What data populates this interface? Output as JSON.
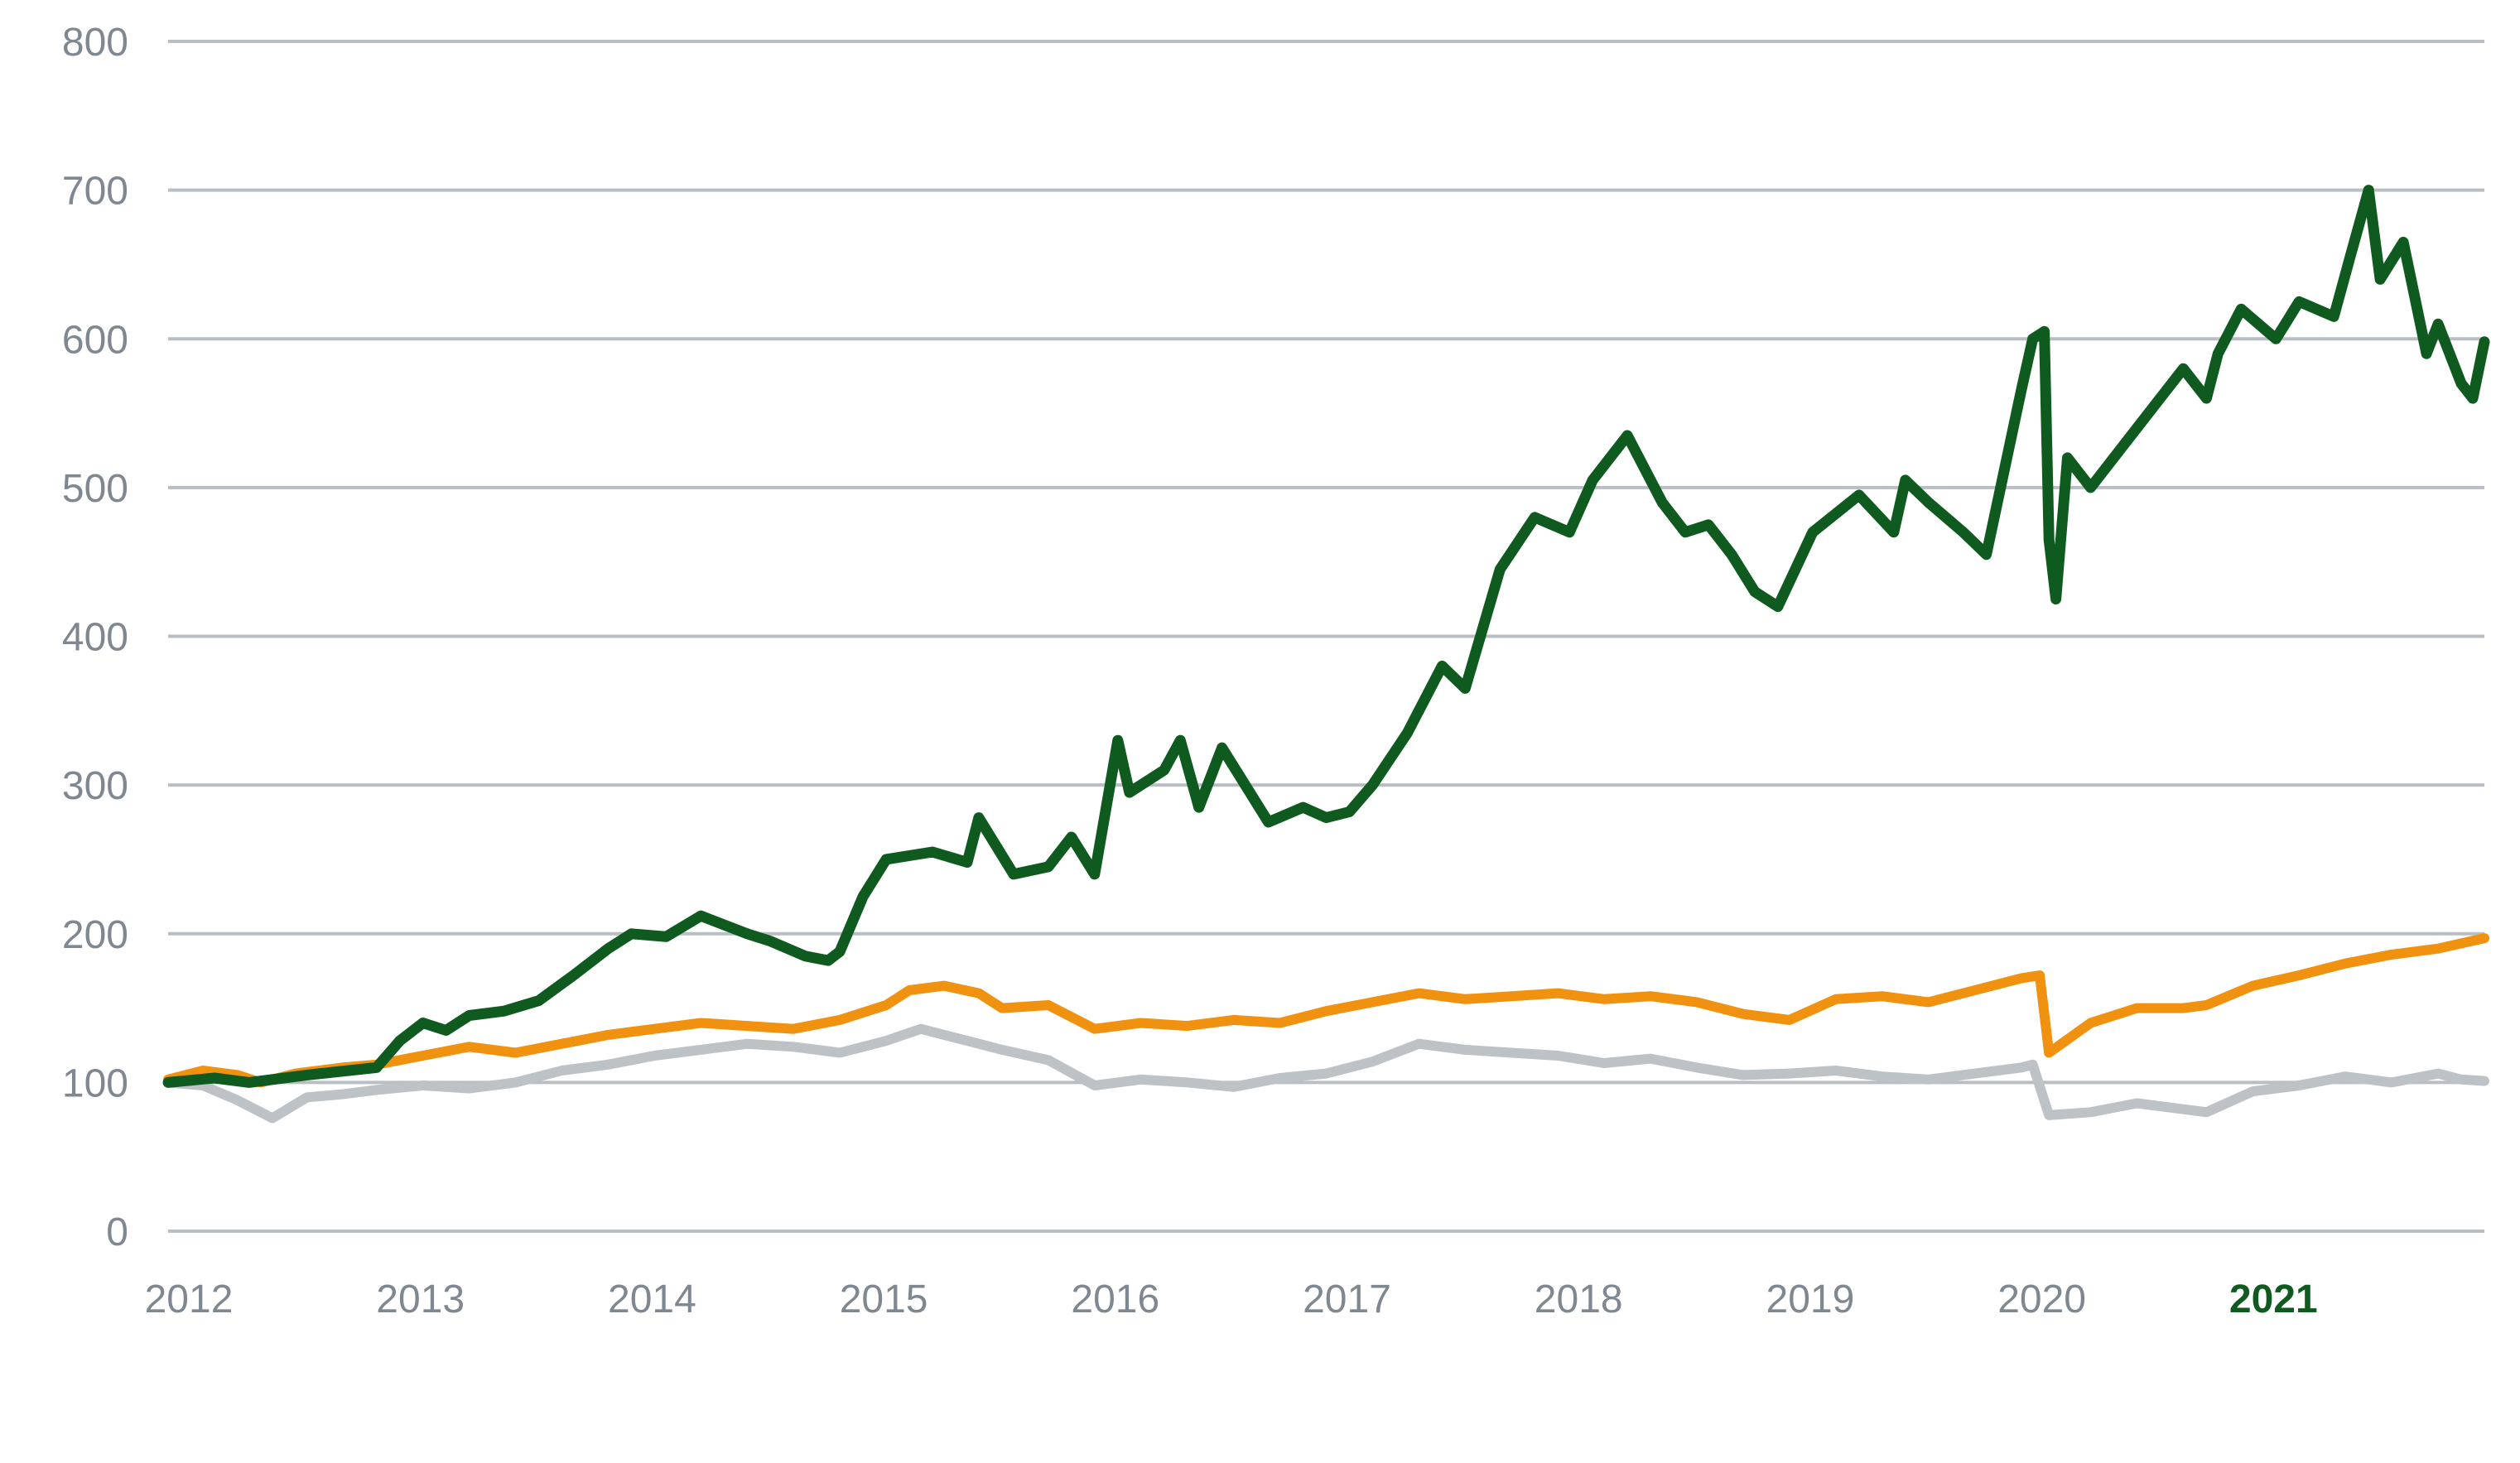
{
  "chart_data": {
    "type": "line",
    "title": "",
    "xlabel": "",
    "ylabel": "",
    "ylim": [
      0,
      800
    ],
    "xlim": [
      2012,
      2022
    ],
    "y_ticks": [
      0,
      100,
      200,
      300,
      400,
      500,
      600,
      700,
      800
    ],
    "x_ticks": [
      {
        "label": "2012",
        "value": 2012,
        "highlight": false
      },
      {
        "label": "2013",
        "value": 2013,
        "highlight": false
      },
      {
        "label": "2014",
        "value": 2014,
        "highlight": false
      },
      {
        "label": "2015",
        "value": 2015,
        "highlight": false
      },
      {
        "label": "2016",
        "value": 2016,
        "highlight": false
      },
      {
        "label": "2017",
        "value": 2017,
        "highlight": false
      },
      {
        "label": "2018",
        "value": 2018,
        "highlight": false
      },
      {
        "label": "2019",
        "value": 2019,
        "highlight": false
      },
      {
        "label": "2020",
        "value": 2020,
        "highlight": false
      },
      {
        "label": "2021",
        "value": 2021,
        "highlight": true
      }
    ],
    "grid": true,
    "series": [
      {
        "color": "#bdc2c7",
        "x": [
          2012.0,
          2012.15,
          2012.3,
          2012.45,
          2012.6,
          2012.75,
          2012.9,
          2013.1,
          2013.3,
          2013.5,
          2013.7,
          2013.9,
          2014.1,
          2014.3,
          2014.5,
          2014.7,
          2014.9,
          2015.1,
          2015.25,
          2015.45,
          2015.6,
          2015.8,
          2016.0,
          2016.2,
          2016.4,
          2016.6,
          2016.8,
          2017.0,
          2017.2,
          2017.4,
          2017.6,
          2017.8,
          2018.0,
          2018.2,
          2018.4,
          2018.6,
          2018.8,
          2019.0,
          2019.2,
          2019.4,
          2019.6,
          2019.8,
          2020.0,
          2020.05,
          2020.12,
          2020.3,
          2020.5,
          2020.7,
          2020.8,
          2021.0,
          2021.2,
          2021.4,
          2021.6,
          2021.8,
          2021.9,
          2022.0
        ],
        "y": [
          100,
          98,
          88,
          76,
          90,
          92,
          95,
          98,
          96,
          100,
          108,
          112,
          118,
          122,
          126,
          124,
          120,
          128,
          136,
          128,
          122,
          115,
          98,
          102,
          100,
          97,
          103,
          106,
          114,
          126,
          122,
          120,
          118,
          113,
          116,
          110,
          105,
          106,
          108,
          104,
          102,
          106,
          110,
          112,
          78,
          80,
          86,
          82,
          80,
          94,
          98,
          104,
          100,
          106,
          102,
          101
        ]
      },
      {
        "color": "#f0920f",
        "x": [
          2012.0,
          2012.15,
          2012.3,
          2012.4,
          2012.55,
          2012.75,
          2012.9,
          2013.1,
          2013.3,
          2013.5,
          2013.7,
          2013.9,
          2014.1,
          2014.3,
          2014.5,
          2014.7,
          2014.9,
          2015.1,
          2015.2,
          2015.35,
          2015.5,
          2015.6,
          2015.8,
          2016.0,
          2016.2,
          2016.4,
          2016.6,
          2016.8,
          2017.0,
          2017.2,
          2017.4,
          2017.6,
          2017.8,
          2018.0,
          2018.2,
          2018.4,
          2018.6,
          2018.8,
          2019.0,
          2019.2,
          2019.4,
          2019.6,
          2019.8,
          2020.0,
          2020.08,
          2020.12,
          2020.3,
          2020.5,
          2020.7,
          2020.8,
          2021.0,
          2021.2,
          2021.4,
          2021.6,
          2021.8,
          2022.0
        ],
        "y": [
          102,
          108,
          105,
          100,
          106,
          110,
          112,
          118,
          124,
          120,
          126,
          132,
          136,
          140,
          138,
          136,
          142,
          152,
          162,
          165,
          160,
          150,
          152,
          136,
          140,
          138,
          142,
          140,
          148,
          154,
          160,
          156,
          158,
          160,
          156,
          158,
          154,
          146,
          142,
          156,
          158,
          154,
          162,
          170,
          172,
          120,
          140,
          150,
          150,
          152,
          165,
          172,
          180,
          186,
          190,
          197
        ]
      },
      {
        "color": "#0f5b1f",
        "x": [
          2012.0,
          2012.2,
          2012.35,
          2012.6,
          2012.9,
          2013.0,
          2013.1,
          2013.2,
          2013.3,
          2013.45,
          2013.6,
          2013.75,
          2013.9,
          2014.0,
          2014.15,
          2014.3,
          2014.5,
          2014.6,
          2014.75,
          2014.85,
          2014.9,
          2015.0,
          2015.1,
          2015.3,
          2015.45,
          2015.5,
          2015.65,
          2015.8,
          2015.9,
          2016.0,
          2016.1,
          2016.15,
          2016.3,
          2016.37,
          2016.45,
          2016.55,
          2016.65,
          2016.75,
          2016.9,
          2017.0,
          2017.1,
          2017.2,
          2017.35,
          2017.5,
          2017.6,
          2017.75,
          2017.9,
          2018.05,
          2018.15,
          2018.3,
          2018.45,
          2018.55,
          2018.65,
          2018.75,
          2018.85,
          2018.95,
          2019.1,
          2019.3,
          2019.45,
          2019.5,
          2019.6,
          2019.75,
          2019.85,
          2020.0,
          2020.05,
          2020.1,
          2020.12,
          2020.15,
          2020.2,
          2020.3,
          2020.5,
          2020.7,
          2020.8,
          2020.85,
          2020.95,
          2021.1,
          2021.2,
          2021.35,
          2021.42,
          2021.5,
          2021.55,
          2021.65,
          2021.75,
          2021.8,
          2021.9,
          2021.95,
          2022.0
        ],
        "y": [
          100,
          103,
          100,
          105,
          110,
          128,
          140,
          135,
          145,
          148,
          155,
          172,
          190,
          200,
          198,
          212,
          200,
          195,
          185,
          182,
          188,
          225,
          250,
          255,
          248,
          278,
          240,
          245,
          265,
          240,
          330,
          295,
          310,
          330,
          285,
          325,
          300,
          275,
          285,
          278,
          282,
          300,
          335,
          380,
          365,
          445,
          480,
          470,
          505,
          535,
          490,
          470,
          475,
          455,
          430,
          420,
          470,
          495,
          470,
          505,
          490,
          470,
          455,
          565,
          600,
          605,
          465,
          425,
          520,
          500,
          540,
          580,
          560,
          590,
          620,
          600,
          625,
          615,
          655,
          700,
          640,
          665,
          590,
          610,
          570,
          560,
          598
        ]
      }
    ]
  }
}
